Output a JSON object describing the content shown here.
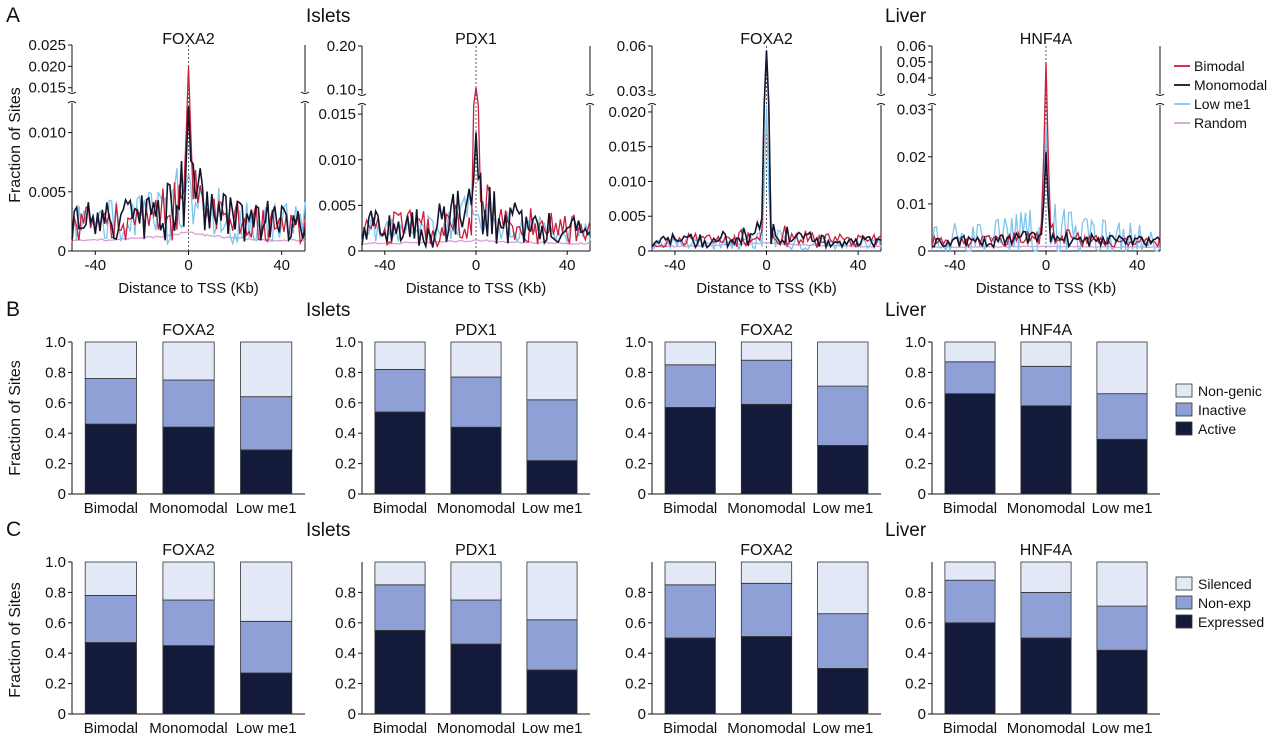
{
  "panels": {
    "A": {
      "letter": "A",
      "group_left": "Islets",
      "group_right": "Liver",
      "ylabel": "Fraction of Sites",
      "xlabel": "Distance to  TSS (Kb)"
    },
    "B": {
      "letter": "B",
      "group_left": "Islets",
      "group_right": "Liver",
      "ylabel": "Fraction of Sites"
    },
    "C": {
      "letter": "C",
      "group_left": "Islets",
      "group_right": "Liver",
      "ylabel": "Fraction of Sites"
    }
  },
  "legends": {
    "A": [
      {
        "label": "Bimodal",
        "color": "#c8203c"
      },
      {
        "label": "Monomodal",
        "color": "#15162e"
      },
      {
        "label": "Low me1",
        "color": "#7fc4ec"
      },
      {
        "label": "Random",
        "color": "#d8a0d8"
      }
    ],
    "B": [
      {
        "label": "Non-genic",
        "color": "#e3e8f6"
      },
      {
        "label": "Inactive",
        "color": "#8ea0d6"
      },
      {
        "label": "Active",
        "color": "#141a3a"
      }
    ],
    "C": [
      {
        "label": "Silenced",
        "color": "#e3e8f6"
      },
      {
        "label": "Non-exp",
        "color": "#8ea0d6"
      },
      {
        "label": "Expressed",
        "color": "#141a3a"
      }
    ]
  },
  "chart_data": [
    {
      "panel": "A",
      "type": "line",
      "title": "FOXA2",
      "group": "Islets",
      "xlim": [
        -50,
        50
      ],
      "xticks": [
        "-40",
        "0",
        "40"
      ],
      "ylim_lower": [
        0,
        0.0125
      ],
      "ylim_upper": [
        0.014,
        0.025
      ],
      "yticks_lower": [
        "0",
        "0.005",
        "0.010"
      ],
      "yticks_upper": [
        "0.015",
        "0.020",
        "0.025"
      ],
      "series": [
        {
          "name": "Bimodal",
          "peak": 0.02,
          "baseline": 0.0022,
          "noise": 0.0025
        },
        {
          "name": "Monomodal",
          "peak": 0.0122,
          "baseline": 0.0025,
          "noise": 0.0025
        },
        {
          "name": "Low me1",
          "peak": 0.0065,
          "baseline": 0.0025,
          "noise": 0.0028
        },
        {
          "name": "Random",
          "peak": 0.0016,
          "baseline": 0.0008,
          "noise": 0.0002
        }
      ]
    },
    {
      "panel": "A",
      "type": "line",
      "title": "PDX1",
      "group": "Islets",
      "xlim": [
        -50,
        50
      ],
      "xticks": [
        "-40",
        "0",
        "40"
      ],
      "ylim_lower": [
        0,
        0.016
      ],
      "ylim_upper": [
        0.09,
        0.2
      ],
      "yticks_lower": [
        "0",
        "0.005",
        "0.010",
        "0.015"
      ],
      "yticks_upper": [
        "0.10",
        "0.20"
      ],
      "series": [
        {
          "name": "Bimodal",
          "peak": 0.105,
          "baseline": 0.0025,
          "noise": 0.0028
        },
        {
          "name": "Monomodal",
          "peak": 0.013,
          "baseline": 0.0025,
          "noise": 0.003
        },
        {
          "name": "Low me1",
          "peak": 0.004,
          "baseline": 0.0022,
          "noise": 0.002
        },
        {
          "name": "Random",
          "peak": 0.0012,
          "baseline": 0.0008,
          "noise": 0.0002
        }
      ]
    },
    {
      "panel": "A",
      "type": "line",
      "title": "FOXA2",
      "group": "Liver",
      "xlim": [
        -50,
        50
      ],
      "xticks": [
        "-40",
        "0",
        "40"
      ],
      "ylim_lower": [
        0,
        0.021
      ],
      "ylim_upper": [
        0.028,
        0.06
      ],
      "yticks_lower": [
        "0",
        "0.005",
        "0.010",
        "0.015",
        "0.020"
      ],
      "yticks_upper": [
        "0.03",
        "0.06"
      ],
      "series": [
        {
          "name": "Bimodal",
          "peak": 0.056,
          "baseline": 0.0015,
          "noise": 0.0015
        },
        {
          "name": "Monomodal",
          "peak": 0.057,
          "baseline": 0.0015,
          "noise": 0.0015
        },
        {
          "name": "Low me1",
          "peak": 0.022,
          "baseline": 0.001,
          "noise": 0.0012
        },
        {
          "name": "Random",
          "peak": 0.0012,
          "baseline": 0.0006,
          "noise": 0.0002
        }
      ]
    },
    {
      "panel": "A",
      "type": "line",
      "title": "HNF4A",
      "group": "Liver",
      "xlim": [
        -50,
        50
      ],
      "xticks": [
        "-40",
        "0",
        "40"
      ],
      "ylim_lower": [
        0,
        0.031
      ],
      "ylim_upper": [
        0.03,
        0.06
      ],
      "yticks_lower": [
        "0",
        "0.01",
        "0.02",
        "0.03"
      ],
      "yticks_upper": [
        "0.04",
        "0.05",
        "0.06"
      ],
      "series": [
        {
          "name": "Bimodal",
          "peak": 0.05,
          "baseline": 0.002,
          "noise": 0.0018
        },
        {
          "name": "Monomodal",
          "peak": 0.021,
          "baseline": 0.002,
          "noise": 0.0018
        },
        {
          "name": "Low me1",
          "peak": 0.027,
          "baseline": 0.002,
          "noise": 0.006
        },
        {
          "name": "Random",
          "peak": 0.001,
          "baseline": 0.0008,
          "noise": 0.0002
        }
      ]
    },
    {
      "panel": "B",
      "type": "bar",
      "stacked": true,
      "title": "FOXA2",
      "group": "Islets",
      "categories": [
        "Bimodal",
        "Monomodal",
        "Low me1"
      ],
      "ylim": [
        0,
        1
      ],
      "yticks": [
        "0",
        "0.2",
        "0.4",
        "0.6",
        "0.8",
        "1.0"
      ],
      "series": [
        {
          "name": "Active",
          "values": [
            0.46,
            0.44,
            0.29
          ]
        },
        {
          "name": "Inactive",
          "values": [
            0.3,
            0.31,
            0.35
          ]
        },
        {
          "name": "Non-genic",
          "values": [
            0.24,
            0.25,
            0.36
          ]
        }
      ]
    },
    {
      "panel": "B",
      "type": "bar",
      "stacked": true,
      "title": "PDX1",
      "group": "Islets",
      "categories": [
        "Bimodal",
        "Monomodal",
        "Low me1"
      ],
      "ylim": [
        0,
        1
      ],
      "yticks": [
        "0",
        "0.2",
        "0.4",
        "0.6",
        "0.8",
        "1.0"
      ],
      "series": [
        {
          "name": "Active",
          "values": [
            0.54,
            0.44,
            0.22
          ]
        },
        {
          "name": "Inactive",
          "values": [
            0.28,
            0.33,
            0.4
          ]
        },
        {
          "name": "Non-genic",
          "values": [
            0.18,
            0.23,
            0.38
          ]
        }
      ]
    },
    {
      "panel": "B",
      "type": "bar",
      "stacked": true,
      "title": "FOXA2",
      "group": "Liver",
      "categories": [
        "Bimodal",
        "Monomodal",
        "Low me1"
      ],
      "ylim": [
        0,
        1
      ],
      "yticks": [
        "0",
        "0.2",
        "0.4",
        "0.6",
        "0.8",
        "1.0"
      ],
      "series": [
        {
          "name": "Active",
          "values": [
            0.57,
            0.59,
            0.32
          ]
        },
        {
          "name": "Inactive",
          "values": [
            0.28,
            0.29,
            0.39
          ]
        },
        {
          "name": "Non-genic",
          "values": [
            0.15,
            0.12,
            0.29
          ]
        }
      ]
    },
    {
      "panel": "B",
      "type": "bar",
      "stacked": true,
      "title": "HNF4A",
      "group": "Liver",
      "categories": [
        "Bimodal",
        "Monomodal",
        "Low me1"
      ],
      "ylim": [
        0,
        1
      ],
      "yticks": [
        "0",
        "0.2",
        "0.4",
        "0.6",
        "0.8",
        "1.0"
      ],
      "series": [
        {
          "name": "Active",
          "values": [
            0.66,
            0.58,
            0.36
          ]
        },
        {
          "name": "Inactive",
          "values": [
            0.21,
            0.26,
            0.3
          ]
        },
        {
          "name": "Non-genic",
          "values": [
            0.13,
            0.16,
            0.34
          ]
        }
      ]
    },
    {
      "panel": "C",
      "type": "bar",
      "stacked": true,
      "title": "FOXA2",
      "group": "Islets",
      "categories": [
        "Bimodal",
        "Monomodal",
        "Low me1"
      ],
      "ylim": [
        0,
        1
      ],
      "yticks": [
        "0",
        "0.2",
        "0.4",
        "0.6",
        "0.8",
        "1.0"
      ],
      "series": [
        {
          "name": "Expressed",
          "values": [
            0.47,
            0.45,
            0.27
          ]
        },
        {
          "name": "Non-exp",
          "values": [
            0.31,
            0.3,
            0.34
          ]
        },
        {
          "name": "Silenced",
          "values": [
            0.22,
            0.25,
            0.39
          ]
        }
      ]
    },
    {
      "panel": "C",
      "type": "bar",
      "stacked": true,
      "title": "PDX1",
      "group": "Islets",
      "categories": [
        "Bimodal",
        "Monomodal",
        "Low me1"
      ],
      "ylim": [
        0,
        1
      ],
      "yticks": [
        "0",
        "0.2",
        "0.4",
        "0.6",
        "0.8"
      ],
      "series": [
        {
          "name": "Expressed",
          "values": [
            0.55,
            0.46,
            0.29
          ]
        },
        {
          "name": "Non-exp",
          "values": [
            0.3,
            0.29,
            0.33
          ]
        },
        {
          "name": "Silenced",
          "values": [
            0.15,
            0.25,
            0.38
          ]
        }
      ]
    },
    {
      "panel": "C",
      "type": "bar",
      "stacked": true,
      "title": "FOXA2",
      "group": "Liver",
      "categories": [
        "Bimodal",
        "Monomodal",
        "Low me1"
      ],
      "ylim": [
        0,
        1
      ],
      "yticks": [
        "0",
        "0.2",
        "0.4",
        "0.6",
        "0.8"
      ],
      "series": [
        {
          "name": "Expressed",
          "values": [
            0.5,
            0.51,
            0.3
          ]
        },
        {
          "name": "Non-exp",
          "values": [
            0.35,
            0.35,
            0.36
          ]
        },
        {
          "name": "Silenced",
          "values": [
            0.15,
            0.14,
            0.34
          ]
        }
      ]
    },
    {
      "panel": "C",
      "type": "bar",
      "stacked": true,
      "title": "HNF4A",
      "group": "Liver",
      "categories": [
        "Bimodal",
        "Monomodal",
        "Low me1"
      ],
      "ylim": [
        0,
        1
      ],
      "yticks": [
        "0",
        "0.2",
        "0.4",
        "0.6",
        "0.8"
      ],
      "series": [
        {
          "name": "Expressed",
          "values": [
            0.6,
            0.5,
            0.42
          ]
        },
        {
          "name": "Non-exp",
          "values": [
            0.28,
            0.3,
            0.29
          ]
        },
        {
          "name": "Silenced",
          "values": [
            0.12,
            0.2,
            0.29
          ]
        }
      ]
    }
  ]
}
